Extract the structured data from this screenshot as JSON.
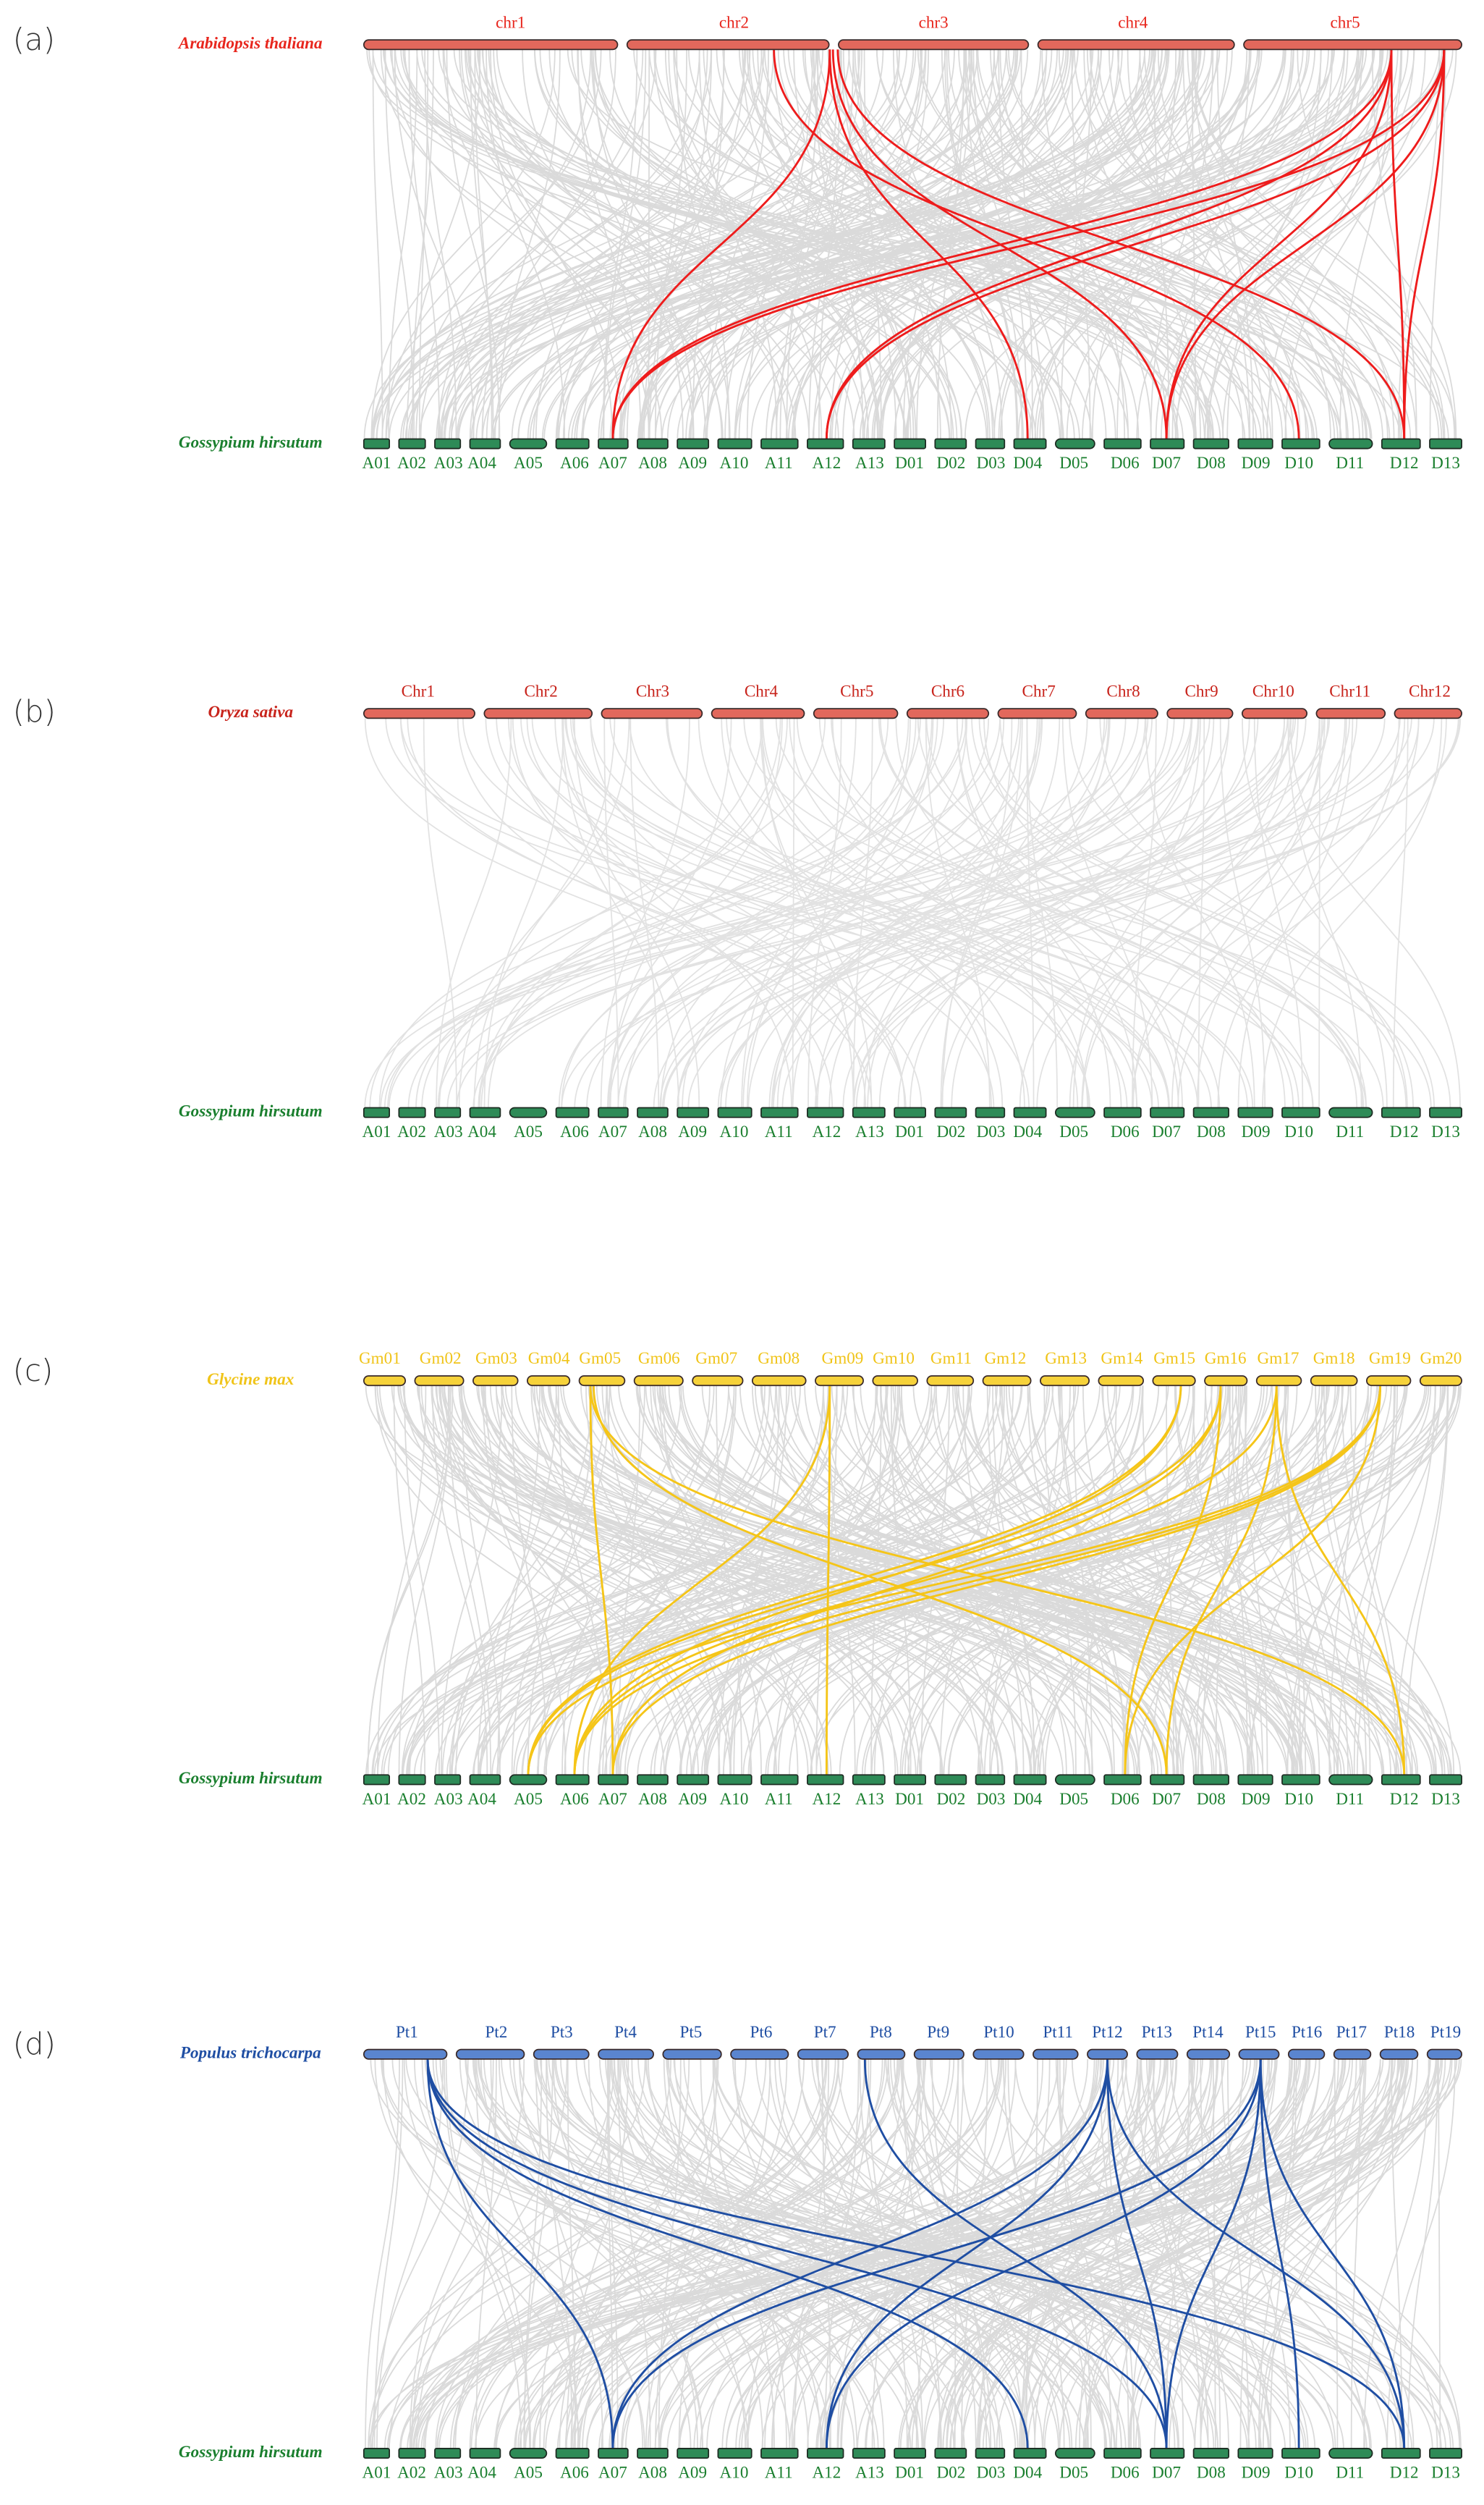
{
  "panels": [
    {
      "label": "(a)",
      "top": {
        "species": "Arabidopsis thaliana",
        "chromosomes": [
          "chr1",
          "chr2",
          "chr3",
          "chr4",
          "chr5"
        ]
      },
      "bottom": {
        "species": "Gossypium hirsutum",
        "chromosomes": [
          "A01",
          "A02",
          "A03",
          "A04",
          "A05",
          "A06",
          "A07",
          "A08",
          "A09",
          "A10",
          "A11",
          "A12",
          "A13",
          "D01",
          "D02",
          "D03",
          "D04",
          "D05",
          "D06",
          "D07",
          "D08",
          "D09",
          "D10",
          "D11",
          "D12",
          "D13"
        ]
      }
    },
    {
      "label": "(b)",
      "top": {
        "species": "Oryza sativa",
        "chromosomes": [
          "Chr1",
          "Chr2",
          "Chr3",
          "Chr4",
          "Chr5",
          "Chr6",
          "Chr7",
          "Chr8",
          "Chr9",
          "Chr10",
          "Chr11",
          "Chr12"
        ]
      },
      "bottom": {
        "species": "Gossypium hirsutum",
        "chromosomes": [
          "A01",
          "A02",
          "A03",
          "A04",
          "A05",
          "A06",
          "A07",
          "A08",
          "A09",
          "A10",
          "A11",
          "A12",
          "A13",
          "D01",
          "D02",
          "D03",
          "D04",
          "D05",
          "D06",
          "D07",
          "D08",
          "D09",
          "D10",
          "D11",
          "D12",
          "D13"
        ]
      }
    },
    {
      "label": "(c)",
      "top": {
        "species": "Glycine max",
        "chromosomes": [
          "Gm01",
          "Gm02",
          "Gm03",
          "Gm04",
          "Gm05",
          "Gm06",
          "Gm07",
          "Gm08",
          "Gm09",
          "Gm10",
          "Gm11",
          "Gm12",
          "Gm13",
          "Gm14",
          "Gm15",
          "Gm16",
          "Gm17",
          "Gm18",
          "Gm19",
          "Gm20"
        ]
      },
      "bottom": {
        "species": "Gossypium hirsutum",
        "chromosomes": [
          "A01",
          "A02",
          "A03",
          "A04",
          "A05",
          "A06",
          "A07",
          "A08",
          "A09",
          "A10",
          "A11",
          "A12",
          "A13",
          "D01",
          "D02",
          "D03",
          "D04",
          "D05",
          "D06",
          "D07",
          "D08",
          "D09",
          "D10",
          "D11",
          "D12",
          "D13"
        ]
      }
    },
    {
      "label": "(d)",
      "top": {
        "species": "Populus trichocarpa",
        "chromosomes": [
          "Pt1",
          "Pt2",
          "Pt3",
          "Pt4",
          "Pt5",
          "Pt6",
          "Pt7",
          "Pt8",
          "Pt9",
          "Pt10",
          "Pt11",
          "Pt12",
          "Pt13",
          "Pt14",
          "Pt15",
          "Pt16",
          "Pt17",
          "Pt18",
          "Pt19"
        ]
      },
      "bottom": {
        "species": "Gossypium hirsutum",
        "chromosomes": [
          "A01",
          "A02",
          "A03",
          "A04",
          "A05",
          "A06",
          "A07",
          "A08",
          "A09",
          "A10",
          "A11",
          "A12",
          "A13",
          "D01",
          "D02",
          "D03",
          "D04",
          "D05",
          "D06",
          "D07",
          "D08",
          "D09",
          "D10",
          "D11",
          "D12",
          "D13"
        ]
      }
    }
  ]
}
